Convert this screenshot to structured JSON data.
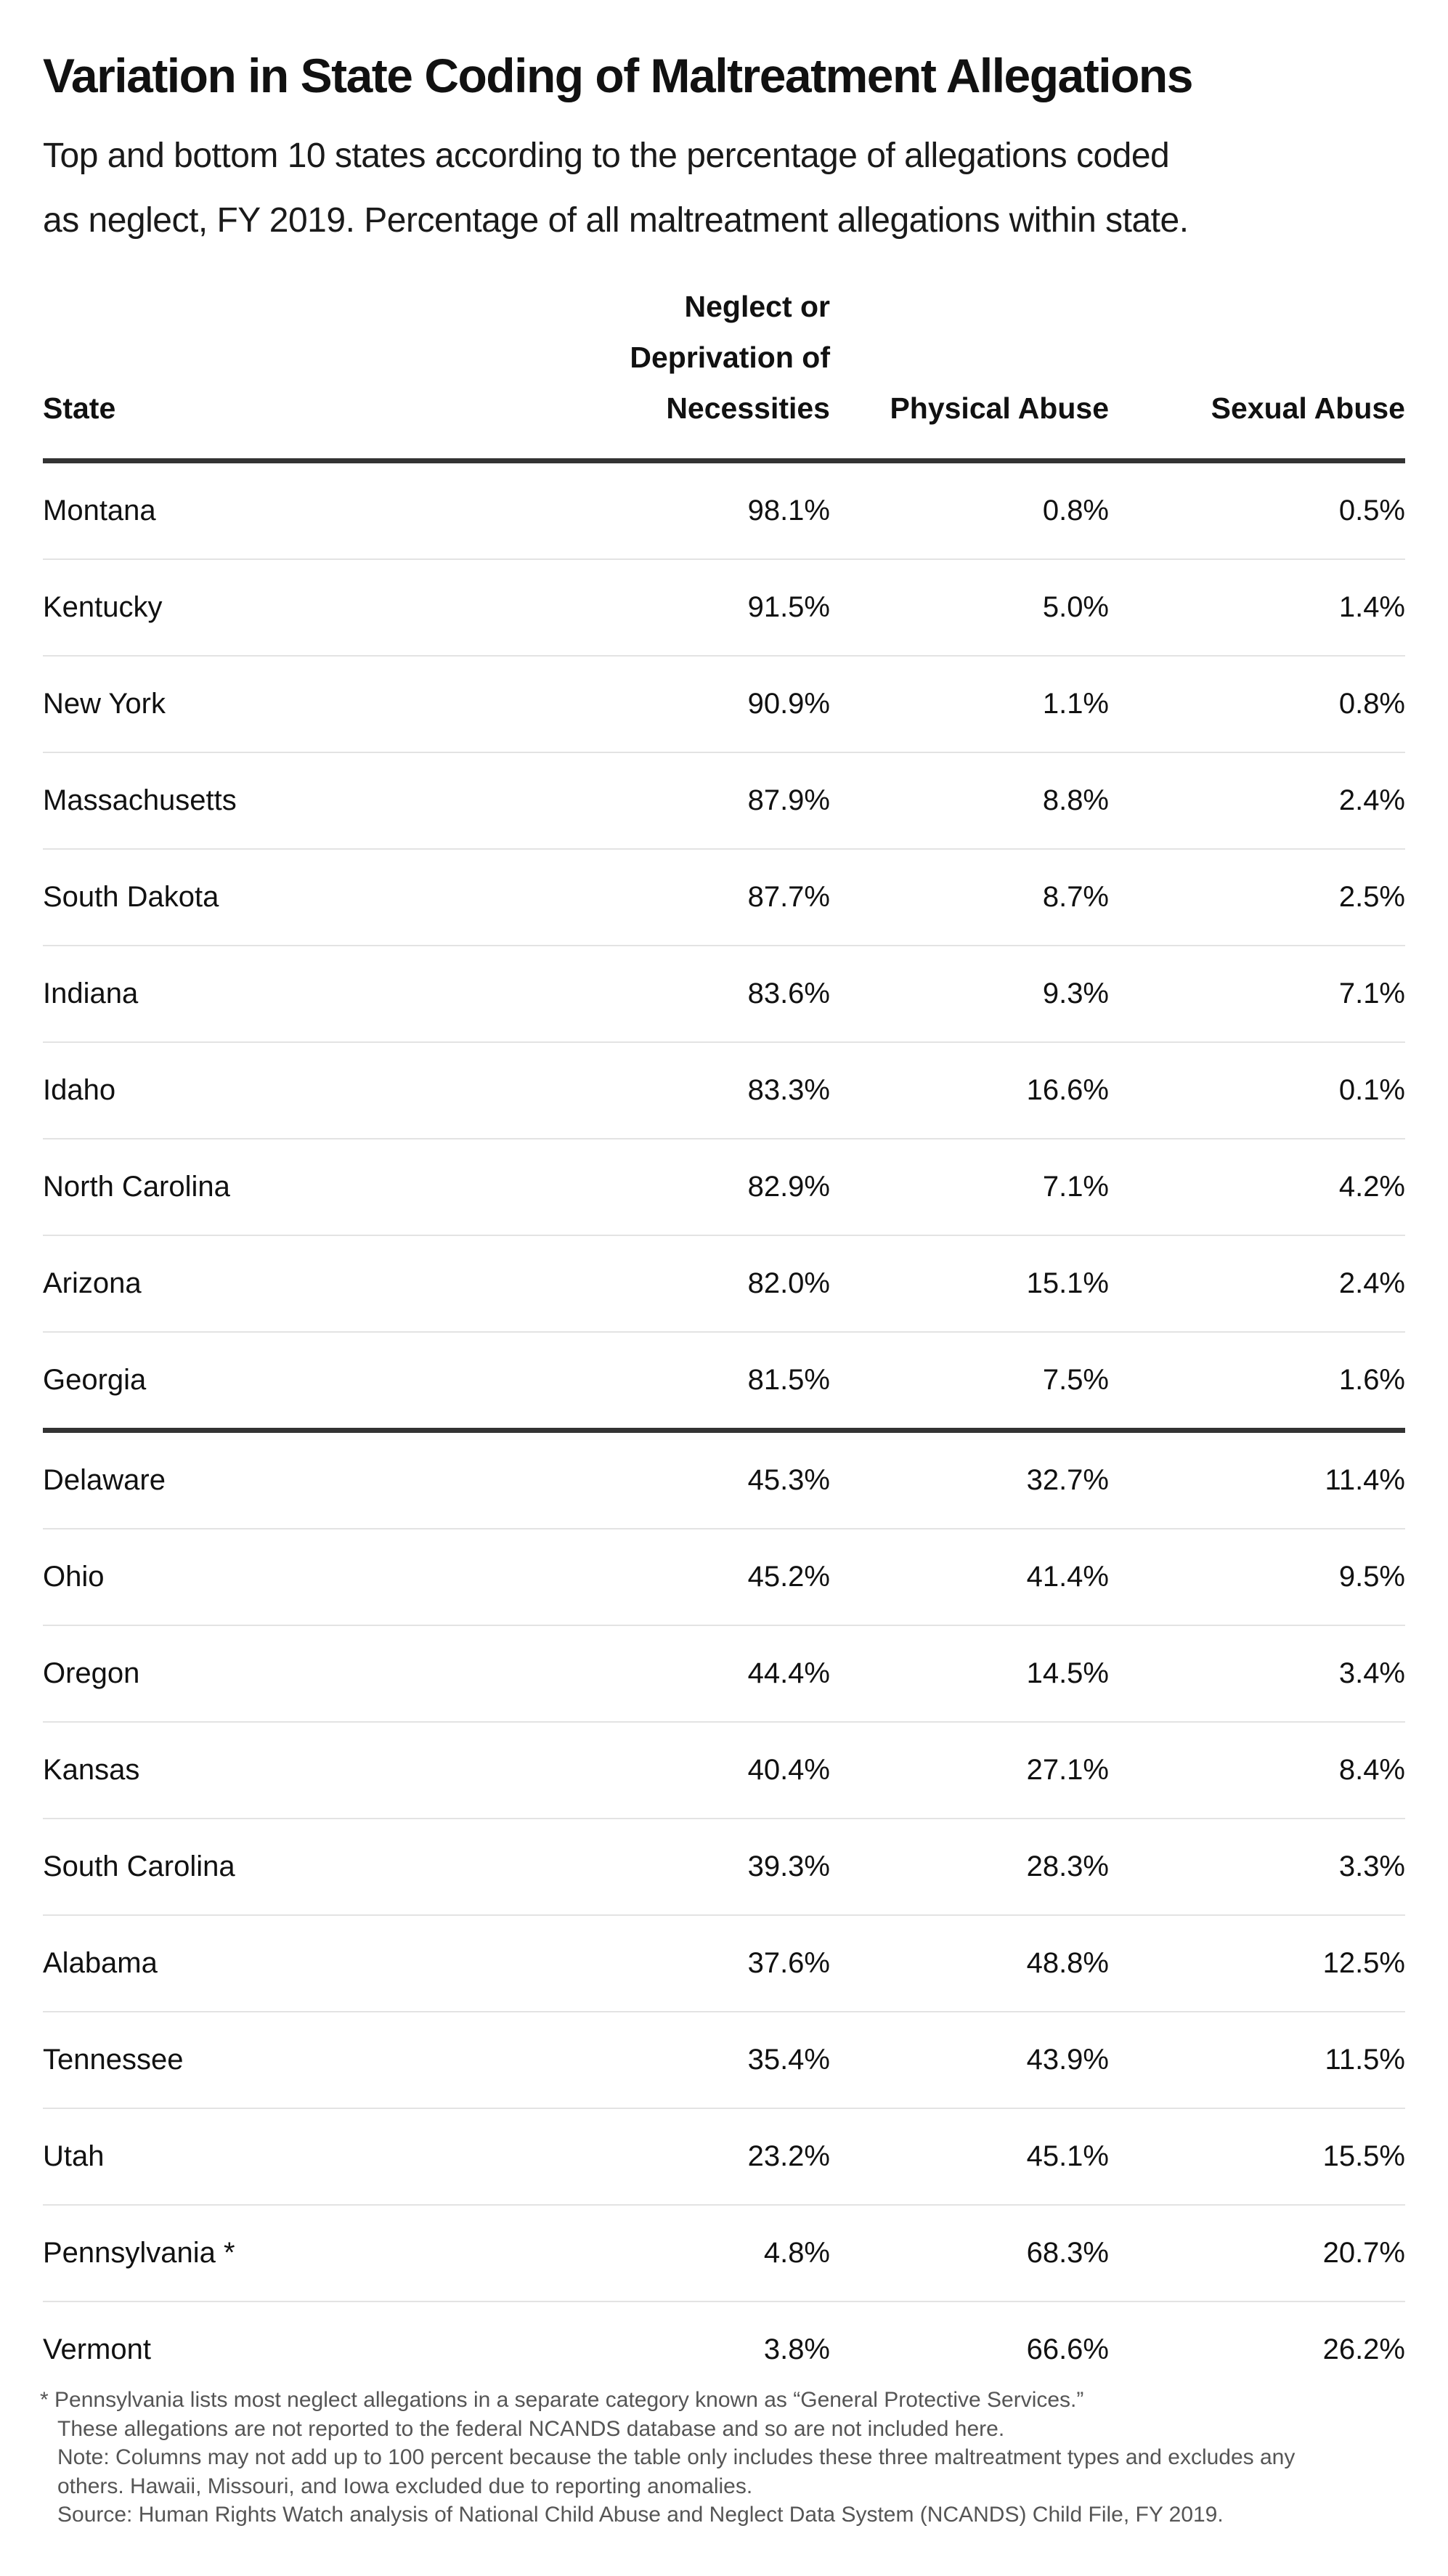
{
  "title": "Variation in State Coding of Maltreatment Allegations",
  "subtitle_line1": "Top and bottom 10 states according to the percentage of allegations coded",
  "subtitle_line2": "as neglect, FY 2019. Percentage of all maltreatment allegations within state.",
  "columns": {
    "state": "State",
    "neglect_line1": "Neglect or",
    "neglect_line2": "Deprivation of",
    "neglect_line3": "Necessities",
    "physical": "Physical Abuse",
    "sexual": "Sexual Abuse"
  },
  "top_rows": [
    [
      "Montana",
      "98.1%",
      "0.8%",
      "0.5%"
    ],
    [
      "Kentucky",
      "91.5%",
      "5.0%",
      "1.4%"
    ],
    [
      "New York",
      "90.9%",
      "1.1%",
      "0.8%"
    ],
    [
      "Massachusetts",
      "87.9%",
      "8.8%",
      "2.4%"
    ],
    [
      "South Dakota",
      "87.7%",
      "8.7%",
      "2.5%"
    ],
    [
      "Indiana",
      "83.6%",
      "9.3%",
      "7.1%"
    ],
    [
      "Idaho",
      "83.3%",
      "16.6%",
      "0.1%"
    ],
    [
      "North Carolina",
      "82.9%",
      "7.1%",
      "4.2%"
    ],
    [
      "Arizona",
      "82.0%",
      "15.1%",
      "2.4%"
    ],
    [
      "Georgia",
      "81.5%",
      "7.5%",
      "1.6%"
    ]
  ],
  "bottom_rows": [
    [
      "Delaware",
      "45.3%",
      "32.7%",
      "11.4%"
    ],
    [
      "Ohio",
      "45.2%",
      "41.4%",
      "9.5%"
    ],
    [
      "Oregon",
      "44.4%",
      "14.5%",
      "3.4%"
    ],
    [
      "Kansas",
      "40.4%",
      "27.1%",
      "8.4%"
    ],
    [
      "South Carolina",
      "39.3%",
      "28.3%",
      "3.3%"
    ],
    [
      "Alabama",
      "37.6%",
      "48.8%",
      "12.5%"
    ],
    [
      "Tennessee",
      "35.4%",
      "43.9%",
      "11.5%"
    ],
    [
      "Utah",
      "23.2%",
      "45.1%",
      "15.5%"
    ],
    [
      "Pennsylvania *",
      "4.8%",
      "68.3%",
      "20.7%"
    ],
    [
      "Vermont",
      "3.8%",
      "66.6%",
      "26.2%"
    ]
  ],
  "notes": [
    "* Pennsylvania lists most neglect allegations in a separate category known as “General Protective Services.”",
    "These allegations are not reported to the federal NCANDS database and so are not included here.",
    "Note: Columns may not add up to 100 percent because the table only includes these three maltreatment types and excludes any",
    "others. Hawaii, Missouri, and Iowa excluded due to reporting anomalies.",
    "Source: Human Rights Watch analysis of National Child Abuse and Neglect Data System (NCANDS) Child File, FY 2019."
  ]
}
